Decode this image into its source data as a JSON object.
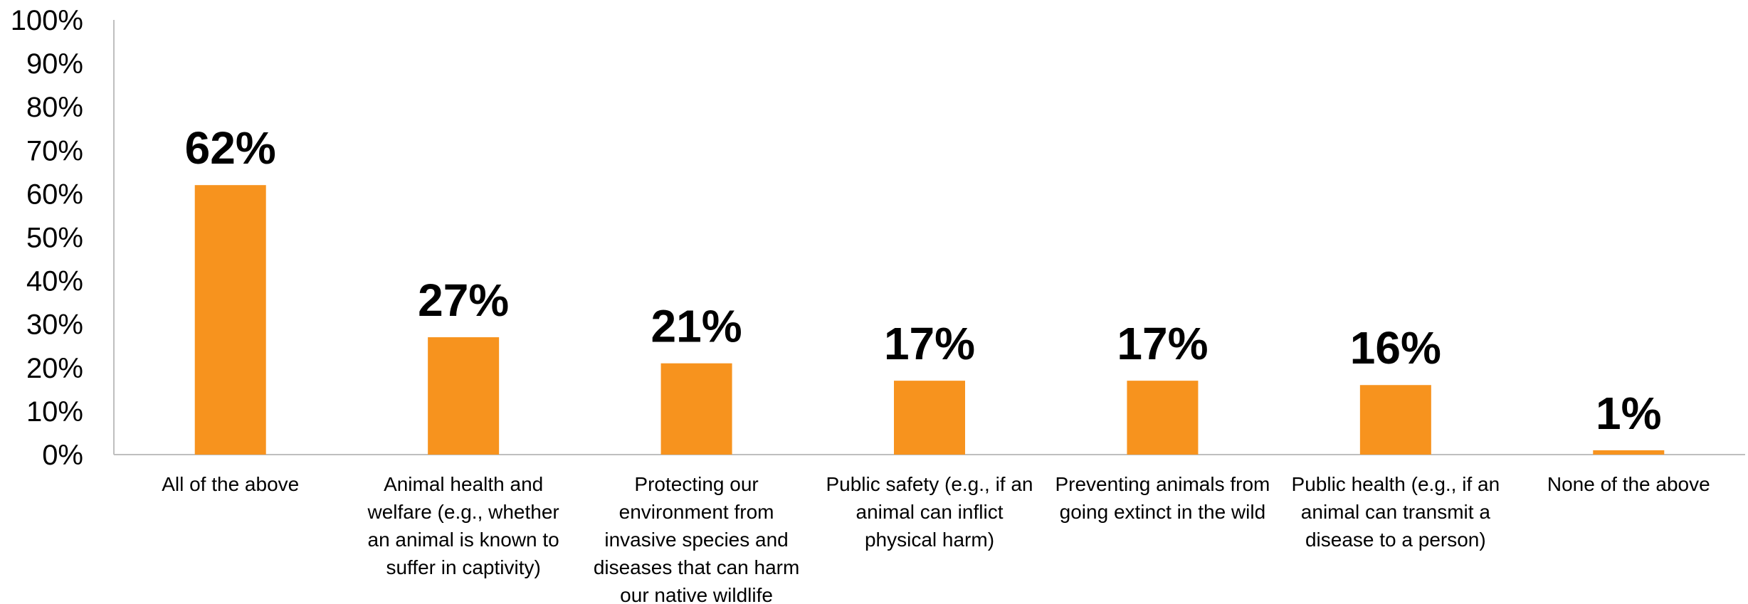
{
  "chart_data": {
    "type": "bar",
    "categories": [
      [
        "All of the above"
      ],
      [
        "Animal health and",
        "welfare (e.g., whether",
        "an animal is known to",
        "suffer in captivity)"
      ],
      [
        "Protecting our",
        "environment from",
        "invasive species and",
        "diseases that can harm",
        "our native wildlife"
      ],
      [
        "Public safety (e.g., if an",
        "animal can inflict",
        "physical harm)"
      ],
      [
        "Preventing animals from",
        "going extinct in the wild"
      ],
      [
        "Public health (e.g., if an",
        "animal can transmit a",
        "disease to a person)"
      ],
      [
        "None of the above"
      ]
    ],
    "values": [
      62,
      27,
      21,
      17,
      17,
      16,
      1
    ],
    "data_labels": [
      "62%",
      "27%",
      "21%",
      "17%",
      "17%",
      "16%",
      "1%"
    ],
    "ylim": [
      0,
      100
    ],
    "yticks": [
      "0%",
      "10%",
      "20%",
      "30%",
      "40%",
      "50%",
      "60%",
      "70%",
      "80%",
      "90%",
      "100%"
    ],
    "bar_color": "#f7931e",
    "grid": false,
    "legend": "none"
  }
}
